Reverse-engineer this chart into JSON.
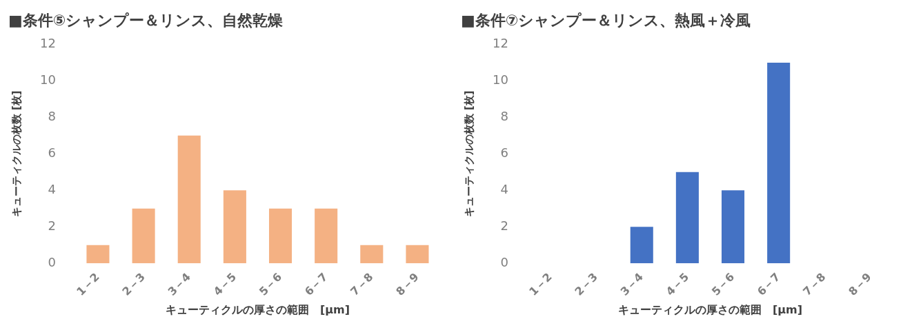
{
  "chart_data": [
    {
      "type": "bar",
      "title": "■条件⑤シャンプー＆リンス、自然乾燥",
      "xlabel": "キューティクルの厚さの範囲　[μm]",
      "ylabel": "キューティクルの枚数 [枚]",
      "categories": [
        "1－2",
        "2－3",
        "3－4",
        "4－5",
        "5－6",
        "6－7",
        "7－8",
        "8－9"
      ],
      "values": [
        1,
        3,
        7,
        4,
        3,
        3,
        1,
        1
      ],
      "color": "#f4b183",
      "ylim": [
        0,
        12
      ],
      "yticks": [
        0,
        2,
        4,
        6,
        8,
        10,
        12
      ],
      "grid": false,
      "legend": false
    },
    {
      "type": "bar",
      "title": "■条件⑦シャンプー＆リンス、熱風＋冷風",
      "xlabel": "キューティクルの厚さの範囲　[μm]",
      "ylabel": "キューティクルの枚数 [枚]",
      "categories": [
        "1－2",
        "2－3",
        "3－4",
        "4－5",
        "5－6",
        "6－7",
        "7－8",
        "8－9"
      ],
      "values": [
        0,
        0,
        2,
        5,
        4,
        11,
        0,
        0
      ],
      "color": "#4472c4",
      "ylim": [
        0,
        12
      ],
      "yticks": [
        0,
        2,
        4,
        6,
        8,
        10,
        12
      ],
      "grid": false,
      "legend": false
    }
  ]
}
